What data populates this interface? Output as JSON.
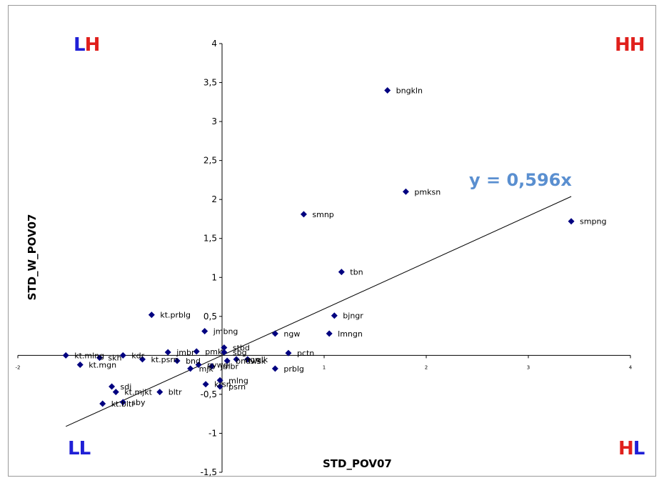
{
  "chart_data": {
    "type": "scatter",
    "xlabel": "STD_POV07",
    "ylabel": "STD_W_POV07",
    "xlim": [
      -2,
      4
    ],
    "ylim": [
      -1.5,
      4
    ],
    "x_ticks": [
      -2,
      1,
      2,
      3,
      4
    ],
    "y_ticks": [
      "-1,5",
      "-1",
      "-0,5",
      "0,5",
      "1",
      "1,5",
      "2",
      "2,5",
      "3",
      "3,5",
      "4"
    ],
    "y_tick_values": [
      -1.5,
      -1,
      -0.5,
      0.5,
      1,
      1.5,
      2,
      2.5,
      3,
      3.5,
      4
    ],
    "trendline": {
      "slope": 0.596,
      "label": "y = 0,596x",
      "x_range": [
        -1.53,
        3.42
      ]
    },
    "marker_color": "#000080",
    "points": [
      {
        "label": "bngkln",
        "x": 1.62,
        "y": 3.4
      },
      {
        "label": "pmksn",
        "x": 1.8,
        "y": 2.1
      },
      {
        "label": "smpng",
        "x": 3.42,
        "y": 1.72
      },
      {
        "label": "smnp",
        "x": 0.8,
        "y": 1.81
      },
      {
        "label": "tbn",
        "x": 1.17,
        "y": 1.07
      },
      {
        "label": "bjngr",
        "x": 1.1,
        "y": 0.51
      },
      {
        "label": "lmngn",
        "x": 1.05,
        "y": 0.28
      },
      {
        "label": "ngw",
        "x": 0.52,
        "y": 0.28
      },
      {
        "label": "kt.prblg",
        "x": -0.69,
        "y": 0.52
      },
      {
        "label": "jmbng",
        "x": -0.17,
        "y": 0.31
      },
      {
        "label": "stbd",
        "x": 0.02,
        "y": 0.1
      },
      {
        "label": "pctn",
        "x": 0.65,
        "y": 0.03
      },
      {
        "label": "sbg",
        "x": 0.02,
        "y": 0.04
      },
      {
        "label": "prblg",
        "x": 0.52,
        "y": -0.17
      },
      {
        "label": "jmbr",
        "x": -0.53,
        "y": 0.04
      },
      {
        "label": "pmk",
        "x": -0.25,
        "y": 0.05
      },
      {
        "label": "kt.mlng",
        "x": -1.53,
        "y": 0
      },
      {
        "label": "kt.mgn",
        "x": -1.39,
        "y": -0.12
      },
      {
        "label": "skh",
        "x": -1.2,
        "y": -0.03
      },
      {
        "label": "kdr",
        "x": -0.97,
        "y": 0
      },
      {
        "label": "kt.psrn",
        "x": -0.78,
        "y": -0.05
      },
      {
        "label": "bnd",
        "x": -0.44,
        "y": -0.07
      },
      {
        "label": "mjk",
        "x": -0.31,
        "y": -0.17
      },
      {
        "label": "pywgi",
        "x": -0.23,
        "y": -0.12
      },
      {
        "label": "jmbr",
        "x": -0.1,
        "y": -0.14
      },
      {
        "label": "ngn",
        "x": 0.14,
        "y": -0.05
      },
      {
        "label": "bndwsk",
        "x": 0.05,
        "y": -0.07
      },
      {
        "label": "glk",
        "x": 0.25,
        "y": -0.05
      },
      {
        "label": "mlng",
        "x": -0.02,
        "y": -0.32
      },
      {
        "label": "sdj",
        "x": -1.08,
        "y": -0.4
      },
      {
        "label": "kt.mjkt",
        "x": -1.04,
        "y": -0.47
      },
      {
        "label": "bltr",
        "x": -0.61,
        "y": -0.47
      },
      {
        "label": "sby",
        "x": -0.97,
        "y": -0.6
      },
      {
        "label": "kt.bltr",
        "x": -1.17,
        "y": -0.62
      },
      {
        "label": "krsn",
        "x": -0.16,
        "y": -0.37
      },
      {
        "label": "psrn",
        "x": -0.02,
        "y": -0.4
      }
    ],
    "quadrants": [
      {
        "pos": "top-left",
        "parts": [
          {
            "text": "L",
            "color": "#1f1fd6"
          },
          {
            "text": "H",
            "color": "#e0201c"
          }
        ]
      },
      {
        "pos": "top-right",
        "parts": [
          {
            "text": "H",
            "color": "#e0201c"
          },
          {
            "text": "H",
            "color": "#e0201c"
          }
        ]
      },
      {
        "pos": "bottom-left",
        "parts": [
          {
            "text": "L",
            "color": "#1f1fd6"
          },
          {
            "text": "L",
            "color": "#1f1fd6"
          }
        ]
      },
      {
        "pos": "bottom-right",
        "parts": [
          {
            "text": "H",
            "color": "#e0201c"
          },
          {
            "text": "L",
            "color": "#1f1fd6"
          }
        ]
      }
    ]
  }
}
